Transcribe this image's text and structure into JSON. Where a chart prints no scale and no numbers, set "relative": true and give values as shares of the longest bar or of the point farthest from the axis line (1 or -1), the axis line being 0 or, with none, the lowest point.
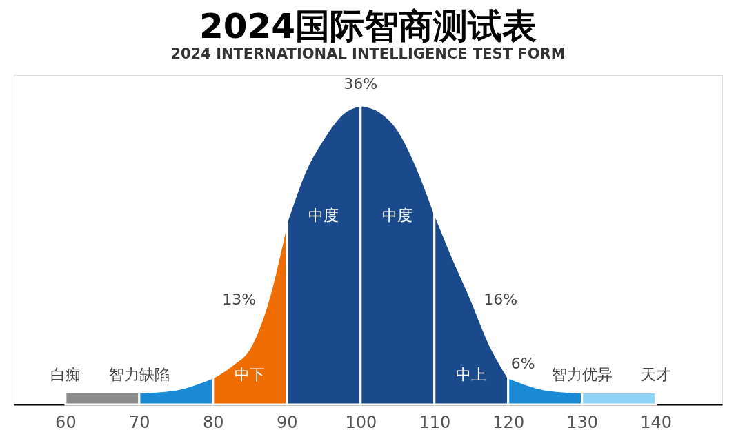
{
  "chart_data": {
    "type": "area",
    "title": "2024国际智商测试表",
    "subtitle": "2024 INTERNATIONAL INTELLIGENCE TEST FORM",
    "relative": true,
    "xlim": [
      53,
      149
    ],
    "xticks": [
      60,
      70,
      80,
      90,
      100,
      110,
      120,
      130,
      140
    ],
    "grid": false,
    "legend": false,
    "series": [
      {
        "name": "白痴",
        "color": "#8c8c8c",
        "x": [
          60,
          70
        ],
        "values": [
          0.04,
          0.04
        ]
      },
      {
        "name": "智力缺陷",
        "color": "#1a8ad4",
        "x": [
          70,
          75,
          80
        ],
        "values": [
          0.04,
          0.05,
          0.09
        ]
      },
      {
        "name": "中下",
        "color": "#ef6c00",
        "x": [
          80,
          82.5,
          85,
          87.5,
          90
        ],
        "values": [
          0.09,
          0.13,
          0.19,
          0.35,
          0.61
        ]
      },
      {
        "name": "中度",
        "color": "#1b4a8c",
        "x": [
          90,
          92.5,
          95,
          97.5,
          100
        ],
        "values": [
          0.61,
          0.78,
          0.89,
          0.97,
          1
        ]
      },
      {
        "name": "中度",
        "color": "#1b4a8c",
        "x": [
          100,
          102.5,
          105,
          107.5,
          110
        ],
        "values": [
          1,
          0.98,
          0.92,
          0.8,
          0.64
        ]
      },
      {
        "name": "中上",
        "color": "#1b4a8c",
        "x": [
          110,
          112.5,
          115,
          117.5,
          120
        ],
        "values": [
          0.64,
          0.49,
          0.35,
          0.2,
          0.09
        ]
      },
      {
        "name": "智力优异",
        "color": "#1a8ad4",
        "x": [
          120,
          125,
          130
        ],
        "values": [
          0.09,
          0.05,
          0.04
        ]
      },
      {
        "name": "天才",
        "color": "#8fd3f7",
        "x": [
          130,
          140
        ],
        "values": [
          0.04,
          0.04
        ]
      }
    ],
    "annotations": [
      "36%",
      "13%",
      "16%",
      "6%"
    ]
  }
}
